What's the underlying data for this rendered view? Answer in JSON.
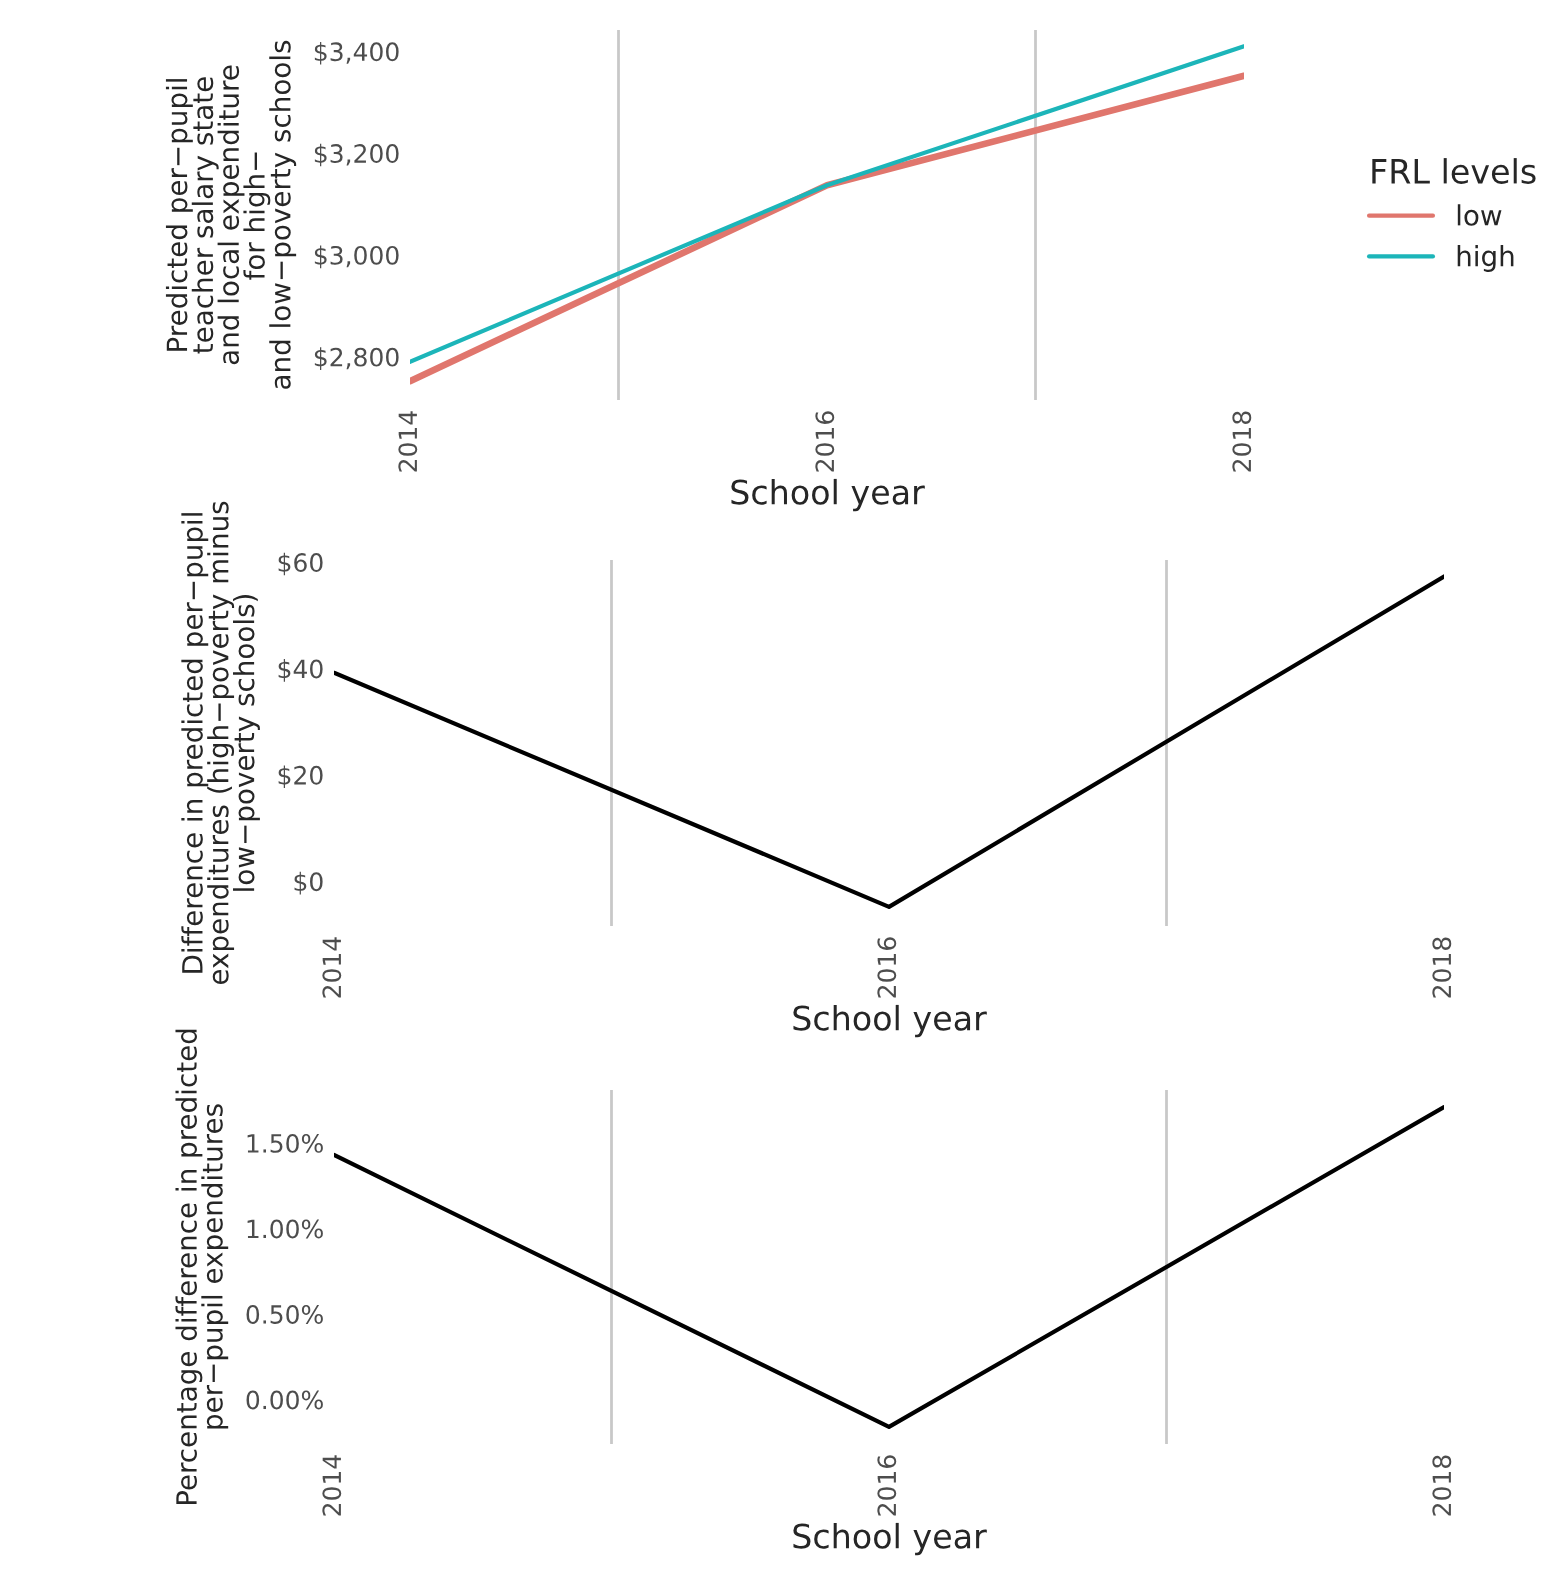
{
  "chart_data": [
    {
      "type": "line",
      "xlabel": "School year",
      "ylabel": "Predicted per−pupil\nteacher salary state\nand local expenditure\nfor high−\nand low−poverty schools",
      "legend_title": "FRL levels",
      "legend": "right",
      "grid": false,
      "x": [
        2014,
        2016,
        2018
      ],
      "series": [
        {
          "name": "low",
          "color": "#e0766d",
          "values": [
            2752,
            3137,
            3352
          ]
        },
        {
          "name": "high",
          "color": "#1cb5b9",
          "values": [
            2790,
            3137,
            3410
          ]
        }
      ],
      "xlim": [
        2014,
        2018
      ],
      "xticks": [
        2014,
        2016,
        2018
      ],
      "ylim": [
        2715,
        3442
      ],
      "yticks": [
        {
          "value": 2800,
          "label": "$2,800"
        },
        {
          "value": 3000,
          "label": "$3,000"
        },
        {
          "value": 3200,
          "label": "$3,200"
        },
        {
          "value": 3400,
          "label": "$3,400"
        }
      ],
      "ref_lines": [
        {
          "axis": "x",
          "value": 2015,
          "color": "#c8c8c8"
        },
        {
          "axis": "x",
          "value": 2017,
          "color": "#c8c8c8"
        }
      ]
    },
    {
      "type": "line",
      "xlabel": "School year",
      "ylabel": "Difference in predicted per−pupil\nexpenditures (high−poverty minus\nlow−poverty schools)",
      "grid": false,
      "x": [
        2014,
        2016,
        2018
      ],
      "series": [
        {
          "color": "#000000",
          "values": [
            39.2,
            -4.8,
            57.3
          ]
        }
      ],
      "xlim": [
        2014,
        2018
      ],
      "xticks": [
        2014,
        2016,
        2018
      ],
      "ylim": [
        -8.4,
        60.4
      ],
      "yticks": [
        {
          "value": 0,
          "label": "$0"
        },
        {
          "value": 20,
          "label": "$20"
        },
        {
          "value": 40,
          "label": "$40"
        },
        {
          "value": 60,
          "label": "$60"
        }
      ],
      "ref_lines": [
        {
          "axis": "x",
          "value": 2015,
          "color": "#c8c8c8"
        },
        {
          "axis": "x",
          "value": 2017,
          "color": "#c8c8c8"
        }
      ]
    },
    {
      "type": "line",
      "xlabel": "School year",
      "ylabel": "Percentage difference in predicted\nper−pupil expenditures",
      "grid": false,
      "x": [
        2014,
        2016,
        2018
      ],
      "series": [
        {
          "color": "#000000",
          "values": [
            1.43,
            -0.16,
            1.71
          ]
        }
      ],
      "xlim": [
        2014,
        2018
      ],
      "xticks": [
        2014,
        2016,
        2018
      ],
      "ylim": [
        -0.26,
        1.81
      ],
      "yticks": [
        {
          "value": 0,
          "label": "0.00%"
        },
        {
          "value": 0.5,
          "label": "0.50%"
        },
        {
          "value": 1.0,
          "label": "1.00%"
        },
        {
          "value": 1.5,
          "label": "1.50%"
        }
      ],
      "ref_lines": [
        {
          "axis": "x",
          "value": 2015,
          "color": "#c8c8c8"
        },
        {
          "axis": "x",
          "value": 2017,
          "color": "#c8c8c8"
        }
      ]
    }
  ]
}
